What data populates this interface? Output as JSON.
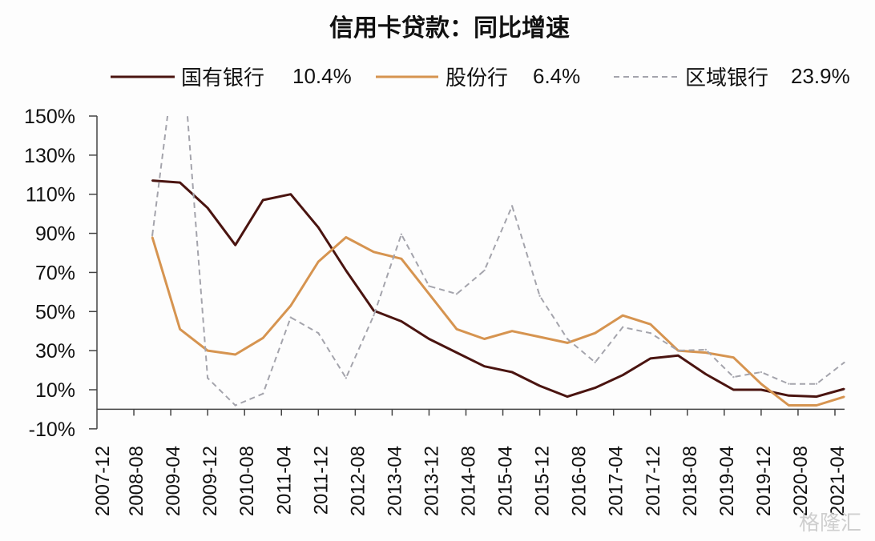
{
  "chart_data": {
    "type": "line",
    "title": "信用卡贷款：同比增速",
    "xlabel": "",
    "ylabel": "",
    "ylim": [
      -10,
      150
    ],
    "yticks": [
      -10,
      10,
      30,
      50,
      70,
      90,
      110,
      130,
      150
    ],
    "ytick_labels": [
      "-10%",
      "10%",
      "30%",
      "50%",
      "70%",
      "90%",
      "110%",
      "130%",
      "150%"
    ],
    "xtick_labels": [
      "2007-12",
      "2008-08",
      "2009-04",
      "2009-12",
      "2010-08",
      "2011-04",
      "2011-12",
      "2012-08",
      "2013-04",
      "2013-12",
      "2014-08",
      "2015-04",
      "2015-12",
      "2016-08",
      "2017-04",
      "2017-12",
      "2018-08",
      "2019-04",
      "2019-12",
      "2020-08",
      "2021-04"
    ],
    "x": [
      "2008-12",
      "2009-06",
      "2009-12",
      "2010-06",
      "2010-12",
      "2011-06",
      "2011-12",
      "2012-06",
      "2012-12",
      "2013-06",
      "2013-12",
      "2014-06",
      "2014-12",
      "2015-06",
      "2015-12",
      "2016-06",
      "2016-12",
      "2017-06",
      "2017-12",
      "2018-06",
      "2018-12",
      "2019-06",
      "2019-12",
      "2020-06",
      "2020-12",
      "2021-06"
    ],
    "grid": false,
    "legend_position": "top",
    "series": [
      {
        "name": "国有银行",
        "latest_label": "10.4%",
        "color": "#4a1410",
        "style": "solid",
        "values": [
          117,
          116,
          103,
          84,
          107,
          110,
          93,
          71,
          50.5,
          45,
          36,
          29,
          22,
          19,
          12,
          6.5,
          11,
          17.5,
          26,
          27.5,
          18,
          10,
          10,
          7,
          6.5,
          10.4
        ]
      },
      {
        "name": "股份行",
        "latest_label": "6.4%",
        "color": "#d69450",
        "style": "solid",
        "values": [
          88,
          41,
          30,
          28,
          36.5,
          53,
          75.5,
          88,
          80.5,
          77,
          59,
          41,
          36,
          40,
          37,
          34,
          39,
          48,
          43.5,
          30,
          29,
          26.5,
          13,
          2,
          2,
          6.4
        ]
      },
      {
        "name": "区域银行",
        "latest_label": "23.9%",
        "color": "#a4a4ac",
        "style": "dashed",
        "values": [
          89,
          200,
          16,
          2,
          8,
          47,
          39,
          16,
          48,
          89.5,
          63,
          59,
          71,
          104,
          58,
          36,
          24,
          42,
          39,
          30,
          30.5,
          16.5,
          19,
          13,
          13,
          23.9
        ]
      }
    ]
  },
  "watermark": "格隆汇"
}
